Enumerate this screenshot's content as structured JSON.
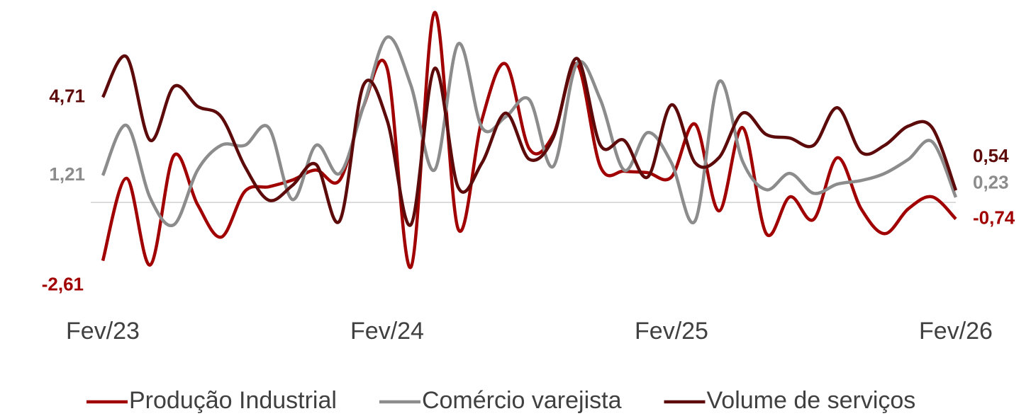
{
  "chart_data": {
    "type": "line",
    "categories": [
      "Fev/23",
      null,
      null,
      null,
      null,
      null,
      null,
      null,
      null,
      null,
      null,
      null,
      "Fev/24",
      null,
      null,
      null,
      null,
      null,
      null,
      null,
      null,
      null,
      null,
      null,
      "Fev/25",
      null,
      null,
      null,
      null,
      null,
      null,
      null,
      null,
      null,
      null,
      null,
      "Fev/26"
    ],
    "series": [
      {
        "name": "Produção Industrial",
        "color": "#a00000",
        "values": [
          -2.61,
          1.08,
          -2.8,
          2.1,
          -0.1,
          -1.55,
          0.5,
          0.7,
          1.0,
          1.45,
          1.0,
          4.3,
          6.0,
          -2.9,
          8.5,
          -1.2,
          3.7,
          6.2,
          2.4,
          3.0,
          6.2,
          1.6,
          1.4,
          1.33,
          1.14,
          3.5,
          -0.38,
          3.35,
          -1.4,
          0.25,
          -0.76,
          2.0,
          -0.28,
          -1.4,
          -0.28,
          0.25,
          -0.74
        ],
        "value_labels": [
          "-2,61",
          null,
          null,
          null,
          null,
          null,
          null,
          null,
          null,
          null,
          null,
          null,
          null,
          null,
          null,
          null,
          null,
          null,
          null,
          null,
          null,
          null,
          null,
          null,
          null,
          null,
          null,
          null,
          null,
          null,
          null,
          null,
          null,
          null,
          null,
          null,
          "-0,74"
        ]
      },
      {
        "name": "Comércio varejista",
        "color": "#8c8c8c",
        "values": [
          1.21,
          3.45,
          0.2,
          -1.0,
          1.45,
          2.56,
          2.56,
          3.35,
          0.13,
          2.56,
          1.3,
          4.3,
          7.4,
          5.25,
          1.45,
          7.1,
          3.35,
          3.83,
          4.6,
          1.6,
          6.2,
          4.6,
          1.45,
          3.13,
          1.77,
          -0.82,
          5.4,
          1.84,
          0.57,
          1.3,
          0.41,
          0.82,
          0.98,
          1.3,
          1.93,
          2.72,
          0.23
        ],
        "value_labels": [
          "1,21",
          null,
          null,
          null,
          null,
          null,
          null,
          null,
          null,
          null,
          null,
          null,
          null,
          null,
          null,
          null,
          null,
          null,
          null,
          null,
          null,
          null,
          null,
          null,
          null,
          null,
          null,
          null,
          null,
          null,
          null,
          null,
          null,
          null,
          null,
          null,
          "0,23"
        ]
      },
      {
        "name": "Volume de serviços",
        "color": "#5c0a0a",
        "values": [
          4.71,
          6.52,
          2.78,
          5.19,
          4.3,
          3.83,
          1.6,
          0.1,
          0.76,
          1.7,
          -0.82,
          5.25,
          3.67,
          -1.0,
          6.0,
          0.67,
          1.77,
          4.0,
          1.93,
          2.88,
          6.45,
          2.56,
          2.78,
          1.14,
          4.37,
          1.77,
          2.0,
          4.0,
          3.04,
          2.88,
          2.56,
          4.24,
          2.25,
          2.56,
          3.42,
          3.35,
          0.54
        ],
        "value_labels": [
          "4,71",
          null,
          null,
          null,
          null,
          null,
          null,
          null,
          null,
          null,
          null,
          null,
          null,
          null,
          null,
          null,
          null,
          null,
          null,
          null,
          null,
          null,
          null,
          null,
          null,
          null,
          null,
          null,
          null,
          null,
          null,
          null,
          null,
          null,
          null,
          null,
          "0,54"
        ]
      }
    ],
    "ylim": [
      -4.2,
      9
    ],
    "legend": "bottom"
  }
}
